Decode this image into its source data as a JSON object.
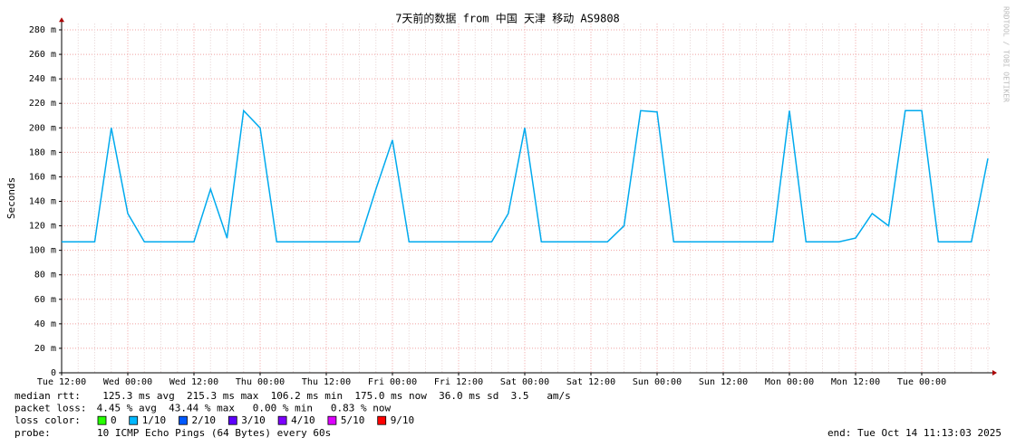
{
  "chart_data": {
    "type": "line",
    "title": "7天前的数据 from 中国 天津 移动 AS9808",
    "ylabel": "Seconds",
    "watermark": "RRDTOOL / TOBI OETIKER",
    "ylim": [
      0,
      0.285
    ],
    "yticks": [
      0,
      {
        "value": 0.02,
        "label": "20 m"
      },
      {
        "value": 0.04,
        "label": "40 m"
      },
      {
        "value": 0.06,
        "label": "60 m"
      },
      {
        "value": 0.08,
        "label": "80 m"
      },
      {
        "value": 0.1,
        "label": "100 m"
      },
      {
        "value": 0.12,
        "label": "120 m"
      },
      {
        "value": 0.14,
        "label": "140 m"
      },
      {
        "value": 0.16,
        "label": "160 m"
      },
      {
        "value": 0.18,
        "label": "180 m"
      },
      {
        "value": 0.2,
        "label": "200 m"
      },
      {
        "value": 0.22,
        "label": "220 m"
      },
      {
        "value": 0.24,
        "label": "240 m"
      },
      {
        "value": 0.26,
        "label": "260 m"
      },
      {
        "value": 0.28,
        "label": "280 m"
      }
    ],
    "grid": true,
    "categories": [
      "Tue 12:00",
      null,
      null,
      null,
      "Wed 00:00",
      null,
      null,
      null,
      "Wed 12:00",
      null,
      null,
      null,
      "Thu 00:00",
      null,
      null,
      null,
      "Thu 12:00",
      null,
      null,
      null,
      "Fri 00:00",
      null,
      null,
      null,
      "Fri 12:00",
      null,
      null,
      null,
      "Sat 00:00",
      null,
      null,
      null,
      "Sat 12:00",
      null,
      null,
      null,
      "Sun 00:00",
      null,
      null,
      null,
      "Sun 12:00",
      null,
      null,
      null,
      "Mon 00:00",
      null,
      null,
      null,
      "Mon 12:00",
      null,
      null,
      null,
      "Tue 00:00",
      null,
      null,
      null,
      null
    ],
    "series": [
      {
        "name": "median rtt:",
        "color": "#00aaee",
        "values": [
          0.107,
          0.107,
          0.107,
          0.2,
          0.13,
          0.107,
          0.107,
          0.107,
          0.107,
          0.15,
          0.11,
          0.214,
          0.2,
          0.107,
          0.107,
          0.107,
          0.107,
          0.107,
          0.107,
          0.15,
          0.19,
          0.107,
          0.107,
          0.107,
          0.107,
          0.107,
          0.107,
          0.13,
          0.2,
          0.107,
          0.107,
          0.107,
          0.107,
          0.107,
          0.12,
          0.214,
          0.213,
          0.107,
          0.107,
          0.107,
          0.107,
          0.107,
          0.107,
          0.107,
          0.214,
          0.107,
          0.107,
          0.107,
          0.11,
          0.13,
          0.12,
          0.214,
          0.214,
          0.107,
          0.107,
          0.107,
          0.175
        ]
      }
    ],
    "stats": [
      "  125.3 ms avg  215.3 ms max  106.2 ms min  175.0 ms now  36.0 ms sd  3.5   am/s"
    ],
    "packet_loss_label": "packet loss:",
    "packet_loss": " 4.45 % avg  43.44 % max   0.00 % min   0.83 % now",
    "loss_color_label": "loss color:",
    "loss_colors": [
      {
        "label": "0",
        "color": "#26ff00"
      },
      {
        "label": "1/10",
        "color": "#00b8ff"
      },
      {
        "label": "2/10",
        "color": "#0059ff"
      },
      {
        "label": "3/10",
        "color": "#5e00ff"
      },
      {
        "label": "4/10",
        "color": "#7e00ff"
      },
      {
        "label": "5/10",
        "color": "#dd00ff"
      },
      {
        "label": "9/10",
        "color": "#ff0000"
      }
    ],
    "probe_label": "probe:",
    "probe": "10 ICMP Echo Pings (64 Bytes) every 60s",
    "end": "end: Tue Oct 14 11:13:03 2025"
  }
}
